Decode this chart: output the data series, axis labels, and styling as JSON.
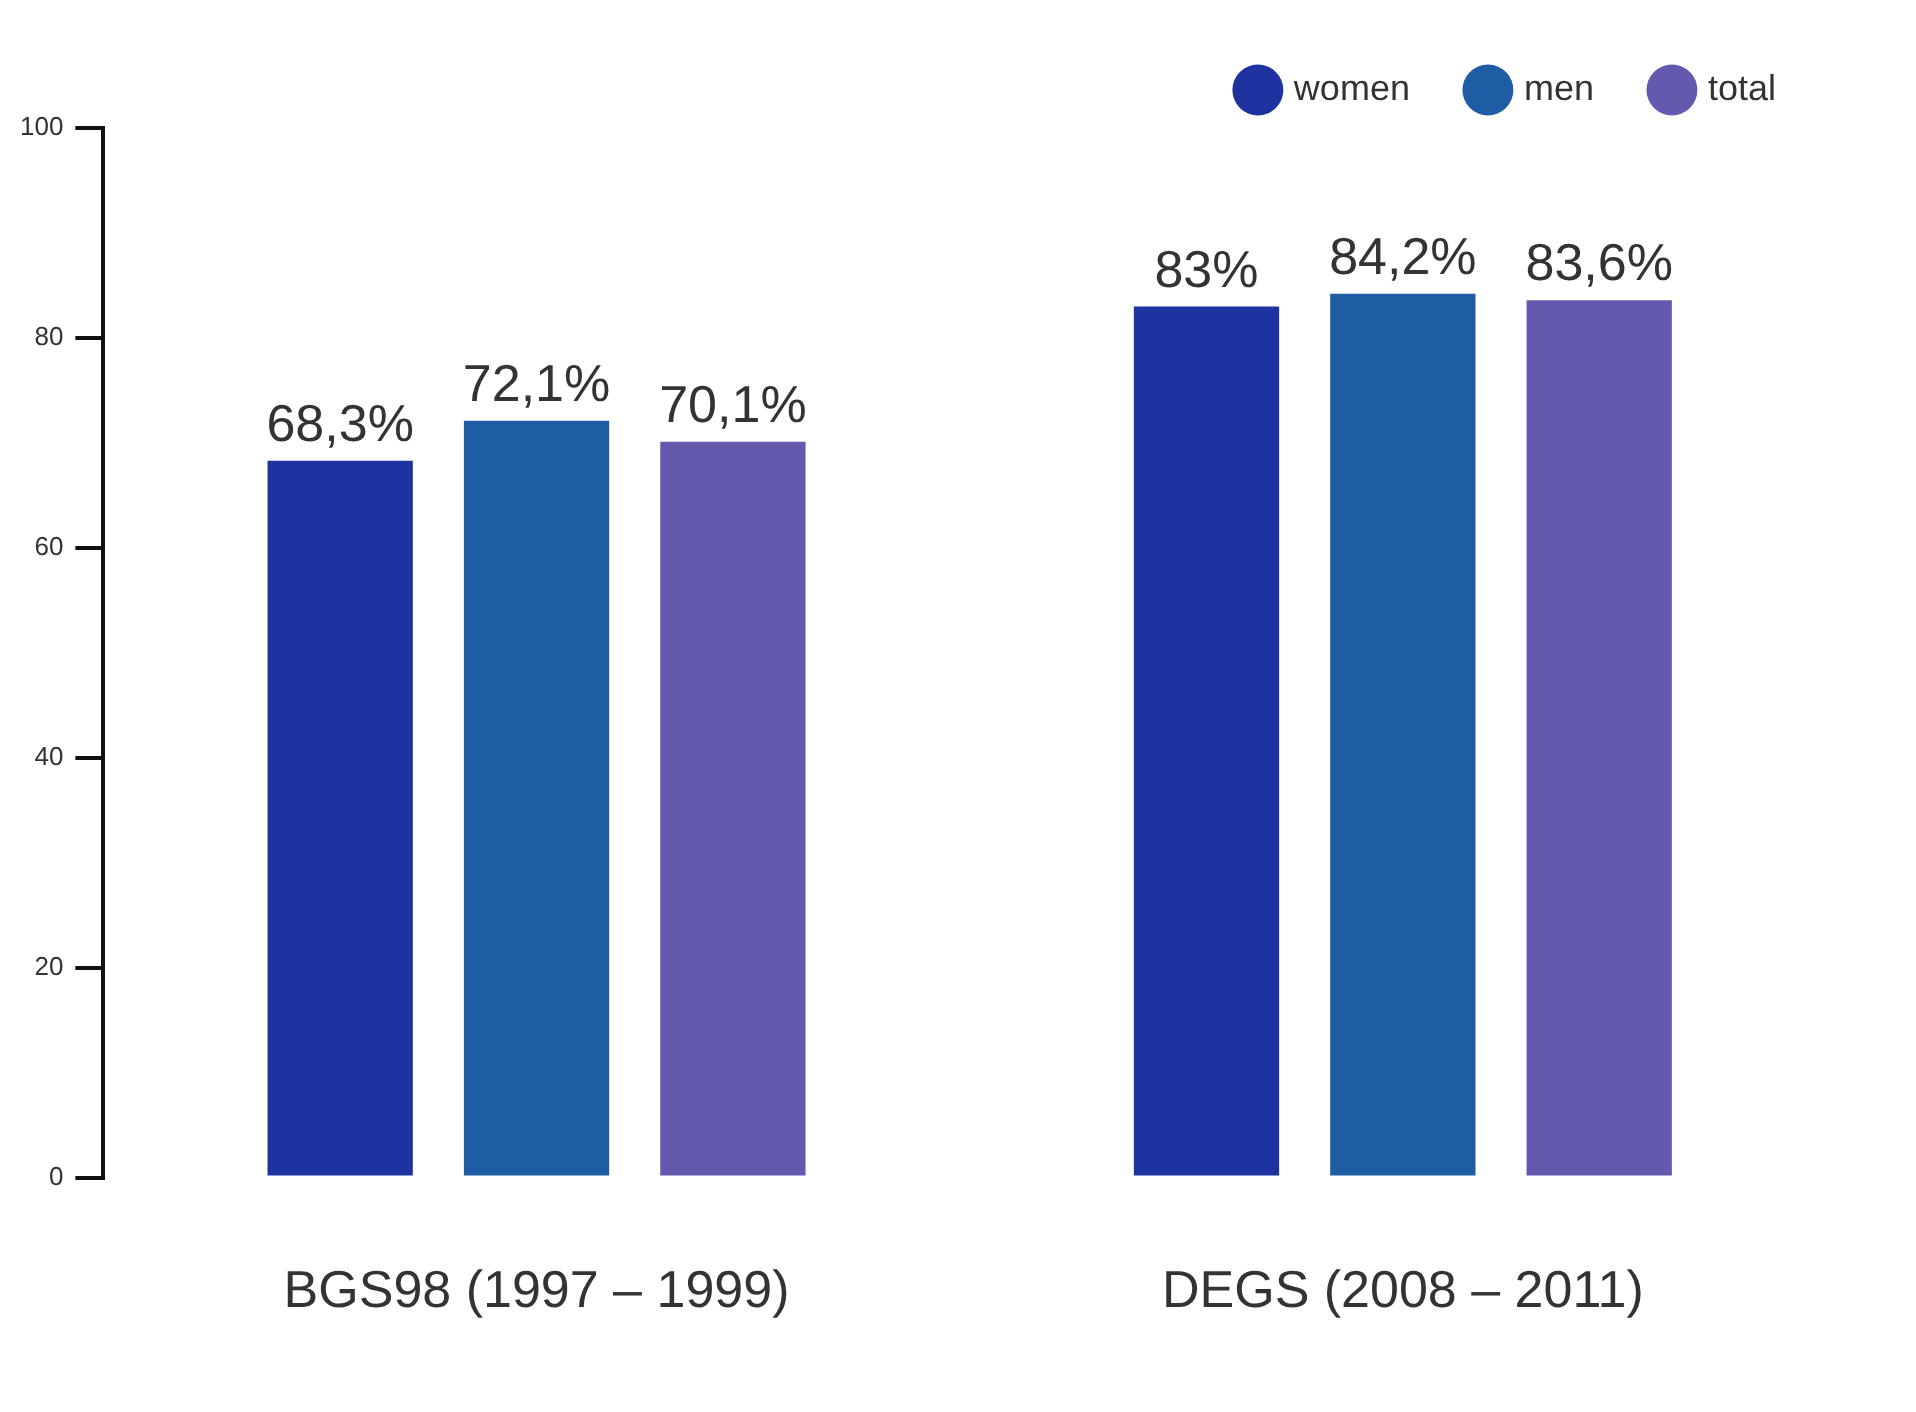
{
  "chart_data": {
    "type": "bar",
    "categories": [
      "BGS98 (1997 – 1999)",
      "DEGS (2008 – 2011)"
    ],
    "series": [
      {
        "name": "women",
        "color": "#1f33a0",
        "values": [
          68.3,
          83
        ],
        "value_labels": [
          "68,3%",
          "83%"
        ]
      },
      {
        "name": "men",
        "color": "#1e5ca3",
        "values": [
          72.1,
          84.2
        ],
        "value_labels": [
          "72,1%",
          "84,2%"
        ]
      },
      {
        "name": "total",
        "color": "#635ab0",
        "values": [
          70.1,
          83.6
        ],
        "value_labels": [
          "70,1%",
          "83,6%"
        ]
      }
    ],
    "ylim": [
      0,
      100
    ],
    "yticks": [
      0,
      20,
      40,
      60,
      80,
      100
    ],
    "grid": false,
    "legend": "top right"
  }
}
